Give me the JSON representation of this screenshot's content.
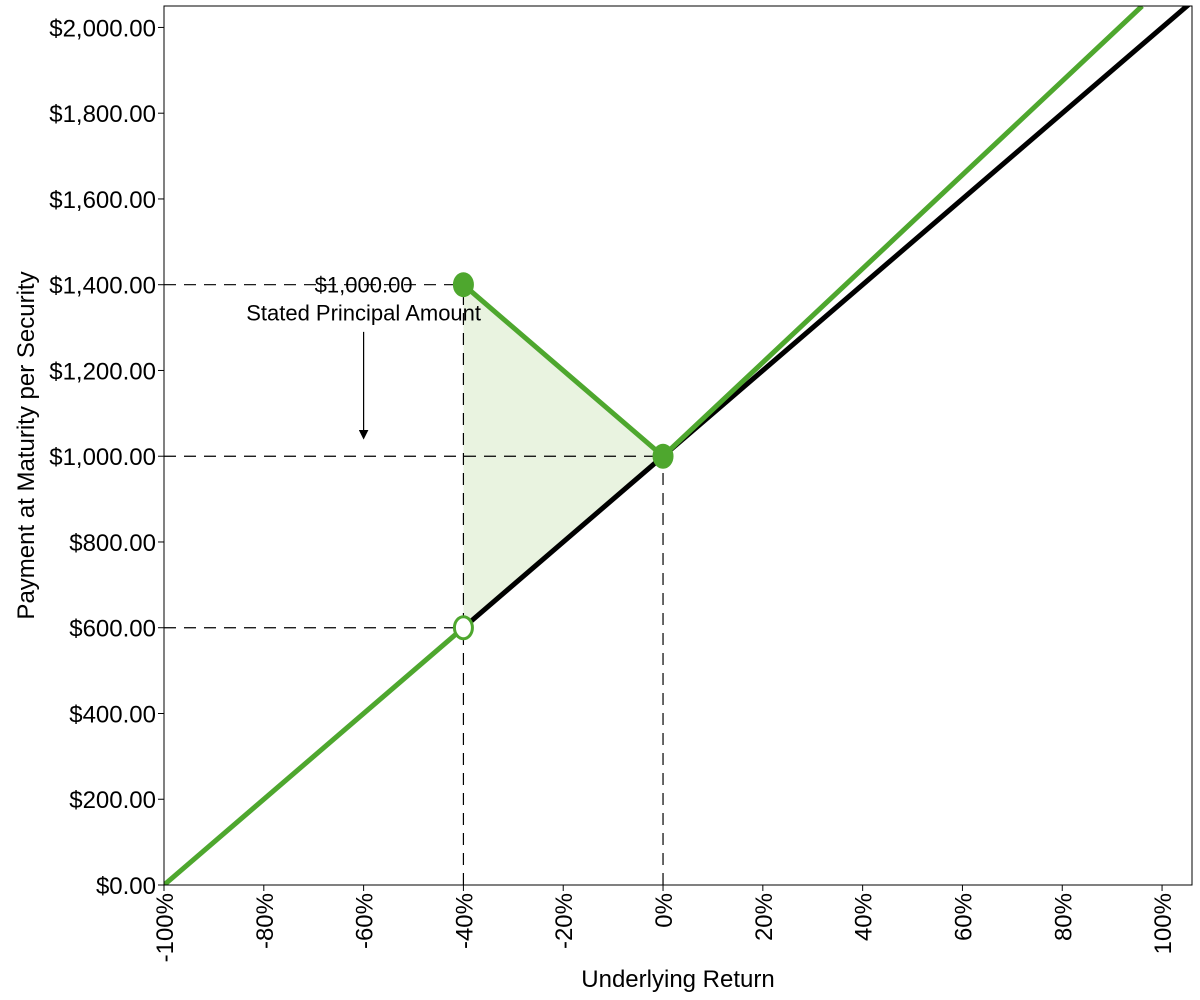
{
  "chart_data": {
    "type": "line",
    "xlabel": "Underlying Return",
    "ylabel": "Payment at Maturity per Security",
    "xlim": [
      -100,
      106
    ],
    "ylim": [
      0,
      2050
    ],
    "x_ticks": [
      -100,
      -80,
      -60,
      -40,
      -20,
      0,
      20,
      40,
      60,
      80,
      100
    ],
    "x_tick_labels": [
      "-100%",
      "-80%",
      "-60%",
      "-40%",
      "-20%",
      "0%",
      "20%",
      "40%",
      "60%",
      "80%",
      "100%"
    ],
    "y_ticks": [
      0,
      200,
      400,
      600,
      800,
      1000,
      1200,
      1400,
      1600,
      1800,
      2000
    ],
    "y_tick_labels": [
      "$0.00",
      "$200.00",
      "$400.00",
      "$600.00",
      "$800.00",
      "$1,000.00",
      "$1,200.00",
      "$1,400.00",
      "$1,600.00",
      "$1,800.00",
      "$2,000.00"
    ],
    "grid": false,
    "series": [
      {
        "role": "underlying",
        "color": "#000000",
        "x": [
          -40,
          106
        ],
        "y": [
          600,
          2060
        ]
      },
      {
        "role": "security-lower",
        "color": "#4ea72e",
        "x": [
          -100,
          -40
        ],
        "y": [
          0,
          600
        ]
      },
      {
        "role": "security-upper",
        "color": "#4ea72e",
        "x": [
          -40,
          0,
          96
        ],
        "y": [
          1400,
          1000,
          2050
        ]
      }
    ],
    "shaded_region": {
      "color": "#e9f3e0",
      "x": [
        -40,
        0,
        -40
      ],
      "y": [
        1400,
        1000,
        600
      ]
    },
    "markers": [
      {
        "name": "filled-marker-neg40",
        "x": -40,
        "y": 1400,
        "filled": true
      },
      {
        "name": "filled-marker-zero",
        "x": 0,
        "y": 1000,
        "filled": true
      },
      {
        "name": "open-marker-neg40",
        "x": -40,
        "y": 600,
        "filled": false
      }
    ],
    "reference_lines": [
      {
        "name": "h-ref-1400",
        "x": [
          -100,
          -40
        ],
        "y": [
          1400,
          1400
        ]
      },
      {
        "name": "h-ref-1000",
        "x": [
          -100,
          0
        ],
        "y": [
          1000,
          1000
        ]
      },
      {
        "name": "h-ref-600",
        "x": [
          -100,
          -40
        ],
        "y": [
          600,
          600
        ]
      },
      {
        "name": "v-ref-neg40",
        "x": [
          -40,
          -40
        ],
        "y": [
          0,
          1400
        ]
      },
      {
        "name": "v-ref-zero",
        "x": [
          0,
          0
        ],
        "y": [
          0,
          1000
        ]
      }
    ],
    "annotation": {
      "value_text": "$1,000.00",
      "label_text": "Stated Principal Amount",
      "text_x": -60,
      "value_y": 1400,
      "label_y": 1335,
      "arrow_x": -60,
      "arrow_from_y": 1290,
      "arrow_to_y": 1050
    },
    "colors": {
      "security": "#4ea72e",
      "underlying": "#000000",
      "shade": "#e9f3e0",
      "reference": "#000000"
    }
  }
}
